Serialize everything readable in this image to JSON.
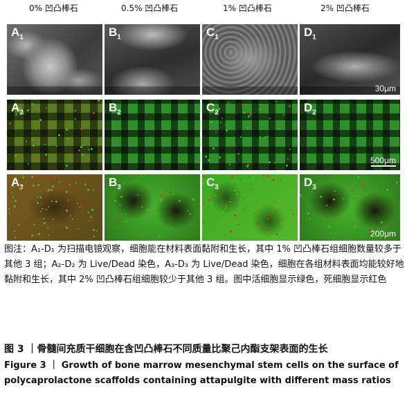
{
  "columns": [
    "0% 凹凸棒石",
    "0.5% 凹凸棒石",
    "1% 凹凸棒石",
    "2% 凹凸棒石"
  ],
  "panels": {
    "A1": {
      "letter": "A",
      "sub": "1"
    },
    "B1": {
      "letter": "B",
      "sub": "1"
    },
    "C1": {
      "letter": "C",
      "sub": "1"
    },
    "D1": {
      "letter": "D",
      "sub": "1"
    },
    "A2": {
      "letter": "A",
      "sub": "2"
    },
    "B2": {
      "letter": "B",
      "sub": "2"
    },
    "C2": {
      "letter": "C",
      "sub": "2"
    },
    "D2": {
      "letter": "D",
      "sub": "2"
    },
    "A3": {
      "letter": "A",
      "sub": "3"
    },
    "B3": {
      "letter": "B",
      "sub": "3"
    },
    "C3": {
      "letter": "C",
      "sub": "3"
    },
    "D3": {
      "letter": "D",
      "sub": "3"
    }
  },
  "scale_bars": {
    "row1": "30μm",
    "row2": "500μm",
    "row3": "200μm"
  },
  "notes": "图注：A₁-D₁ 为扫描电镜观察，细胞能在材料表面黏附和生长，其中 1% 凹凸棒石组细胞数量较多于其他 3 组；A₂-D₂ 为 Live/Dead 染色，A₃-D₃ 为 Live/Dead 染色，细胞在各组材料表面均能较好地黏附和生长，其中 2% 凹凸棒石组细胞较少于其他 3 组。图中活细胞显示绿色，死细胞显示红色",
  "figure_title_zh": "图 3 ｜骨髓间充质干细胞在含凹凸棒石不同质量比聚己内酯支架表面的生长",
  "figure_title_en": "Figure 3 ｜ Growth of bone marrow mesenchymal stem cells on the surface of polycaprolactone scaffolds containing attapulgite with different mass ratios",
  "colors": {
    "live": "#3fbf2a",
    "dead": "#d23a1f"
  }
}
